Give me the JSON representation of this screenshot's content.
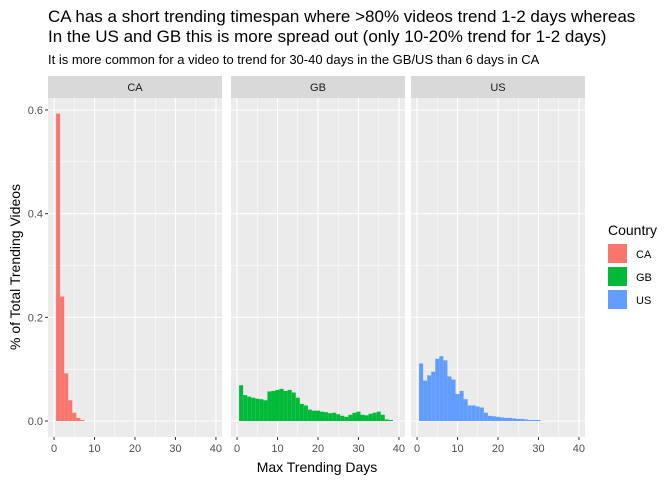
{
  "chart_data": {
    "type": "bar",
    "title": "CA has a short trending timespan where >80% videos trend 1-2 days whereas",
    "title_line2": "In the US and GB this is more spread out (only 10-20% trend for 1-2 days)",
    "subtitle": "It is more common for a video to trend for 30-40 days in the GB/US than 6 days in CA",
    "xlabel": "Max Trending Days",
    "ylabel": "% of Total Trending Videos",
    "xlim": [
      0,
      40
    ],
    "ylim": [
      0,
      0.6
    ],
    "xticks": [
      0,
      10,
      20,
      30,
      40
    ],
    "yticks": [
      0.0,
      0.2,
      0.4,
      0.6
    ],
    "ytick_labels": [
      "0.0",
      "0.2",
      "0.4",
      "0.6"
    ],
    "grid": true,
    "legend": {
      "title": "Country",
      "position": "right"
    },
    "facets": [
      {
        "name": "CA",
        "color": "#F8766D",
        "x": [
          1,
          2,
          3,
          4,
          5,
          6,
          7
        ],
        "values": [
          0.593,
          0.24,
          0.092,
          0.04,
          0.016,
          0.006,
          0.002
        ]
      },
      {
        "name": "GB",
        "color": "#00BA38",
        "x": [
          1,
          2,
          3,
          4,
          5,
          6,
          7,
          8,
          9,
          10,
          11,
          12,
          13,
          14,
          15,
          16,
          17,
          18,
          19,
          20,
          21,
          22,
          23,
          24,
          25,
          26,
          27,
          28,
          29,
          30,
          31,
          32,
          33,
          34,
          35,
          36,
          37,
          38
        ],
        "values": [
          0.069,
          0.05,
          0.047,
          0.045,
          0.043,
          0.042,
          0.04,
          0.057,
          0.058,
          0.06,
          0.062,
          0.058,
          0.06,
          0.055,
          0.045,
          0.033,
          0.03,
          0.022,
          0.02,
          0.02,
          0.018,
          0.017,
          0.015,
          0.016,
          0.013,
          0.01,
          0.008,
          0.012,
          0.016,
          0.018,
          0.012,
          0.011,
          0.014,
          0.016,
          0.018,
          0.012,
          0.003,
          0.002
        ]
      },
      {
        "name": "US",
        "color": "#619CFF",
        "x": [
          1,
          2,
          3,
          4,
          5,
          6,
          7,
          8,
          9,
          10,
          11,
          12,
          13,
          14,
          15,
          16,
          17,
          18,
          19,
          20,
          21,
          22,
          23,
          24,
          25,
          26,
          27,
          28,
          29,
          30
        ],
        "values": [
          0.111,
          0.078,
          0.088,
          0.095,
          0.12,
          0.125,
          0.117,
          0.086,
          0.08,
          0.052,
          0.058,
          0.042,
          0.03,
          0.03,
          0.028,
          0.026,
          0.016,
          0.01,
          0.009,
          0.008,
          0.007,
          0.006,
          0.006,
          0.005,
          0.004,
          0.004,
          0.003,
          0.002,
          0.002,
          0.002
        ]
      }
    ]
  }
}
